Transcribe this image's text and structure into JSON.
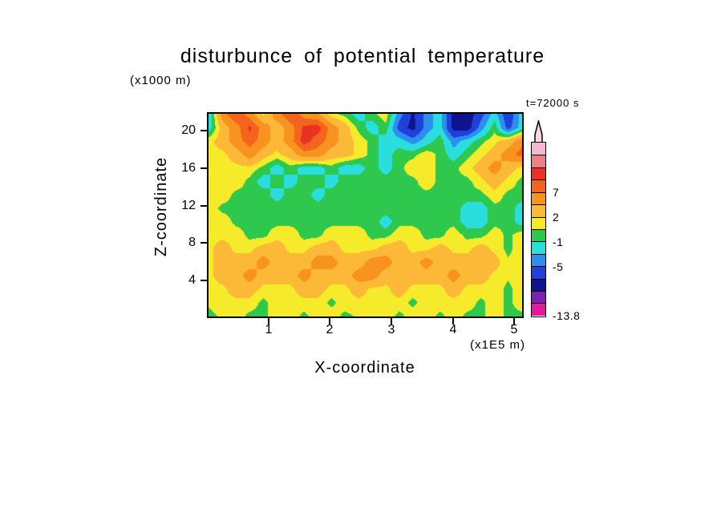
{
  "title": "disturbunce of potential temperature",
  "time_label": "t=72000 s",
  "axes": {
    "x": {
      "label": "X-coordinate",
      "units": "(x1E5 m)",
      "ticks": [
        "1",
        "2",
        "3",
        "4",
        "5"
      ]
    },
    "z": {
      "label": "Z-coordinate",
      "units": "(x1000 m)",
      "ticks": [
        "20",
        "16",
        "12",
        "8",
        "4"
      ]
    }
  },
  "colorbar": {
    "labels": [
      "7",
      "2",
      "-1",
      "-5",
      "-13.8"
    ],
    "label_boundaries": [
      4,
      6,
      8,
      10,
      14
    ],
    "tip_color": "#f8d6e2"
  },
  "chart_data": {
    "type": "heatmap",
    "title": "disturbunce of potential temperature",
    "xlabel": "X-coordinate (x1E5 m)",
    "ylabel": "Z-coordinate (x1000 m)",
    "time_annotation": "t=72000 s",
    "x_range": [
      0,
      5.15
    ],
    "z_range": [
      0,
      22
    ],
    "x_ticks": [
      1,
      2,
      3,
      4,
      5
    ],
    "z_ticks": [
      4,
      8,
      12,
      16,
      20
    ],
    "colorbar_labeled_levels": [
      7,
      2,
      -1,
      -5,
      -13.8
    ],
    "value_min": -13.8,
    "levels_desc": [
      12.5,
      11,
      9,
      7,
      4.5,
      2,
      0.5,
      -1,
      -3,
      -5,
      -7.5,
      -10,
      -12
    ],
    "band_colors_desc": [
      "#f5b8d0",
      "#ee7f86",
      "#e93223",
      "#f4641e",
      "#f7931e",
      "#fcb938",
      "#f6eb2a",
      "#2dc84d",
      "#2adede",
      "#2e8ef0",
      "#1f41d9",
      "#10148c",
      "#7b22b4",
      "#e5199c"
    ],
    "grid": {
      "cols": 24,
      "rows": 16,
      "x0": 0,
      "x1": 5.15,
      "z_top": 22,
      "z_bottom": 0,
      "values": [
        [
          -3,
          6,
          9,
          6,
          1.5,
          6,
          9,
          6,
          5,
          1,
          0,
          -2,
          0,
          1.5,
          -4,
          -8,
          -4,
          -2,
          -8.5,
          -9,
          -6,
          -2,
          -7,
          -2
        ],
        [
          -2,
          3,
          6,
          9.5,
          6,
          3,
          6,
          9.5,
          10,
          6,
          3,
          0,
          -2,
          0,
          -6,
          -8.5,
          -4,
          -2,
          -8.5,
          -9,
          -4,
          0,
          -6,
          -2
        ],
        [
          1.5,
          3,
          6,
          8,
          6,
          3,
          6,
          10,
          8,
          6,
          3,
          1.5,
          0,
          -2,
          -2,
          -4,
          -2,
          0,
          -4,
          -2,
          0,
          1.5,
          3,
          6
        ],
        [
          1.5,
          1.5,
          3,
          6,
          3,
          1.5,
          3,
          6,
          6,
          3,
          3,
          1.5,
          0,
          -2,
          0,
          0,
          1.5,
          0,
          -2,
          0,
          1.5,
          3,
          6,
          8
        ],
        [
          1.5,
          1.5,
          1.5,
          1.5,
          0,
          -2,
          0,
          -2,
          -2,
          0,
          -2,
          -2,
          0,
          -2,
          0,
          1.5,
          1.5,
          0,
          0,
          1.5,
          3,
          6,
          3,
          1.5
        ],
        [
          1.5,
          1.5,
          1.5,
          0,
          -2,
          0,
          -2,
          0,
          0,
          -2,
          0,
          0,
          0,
          0,
          0,
          0,
          1.5,
          0,
          0,
          0,
          1.5,
          3,
          1.5,
          0
        ],
        [
          1.5,
          1.5,
          0,
          0,
          0,
          -2,
          0,
          0,
          -2,
          0,
          0,
          0,
          0,
          0,
          0,
          0,
          0,
          0,
          0,
          0,
          0,
          1.5,
          0,
          0
        ],
        [
          1.5,
          0,
          0,
          0,
          0,
          0,
          0,
          0,
          0,
          0,
          0,
          0,
          0,
          0,
          0,
          0,
          0,
          0,
          0,
          -2,
          -2,
          0,
          0,
          -2
        ],
        [
          1.5,
          1.5,
          0,
          0,
          0,
          0,
          0,
          0,
          0,
          0,
          0,
          0,
          0,
          -2,
          0,
          0,
          0,
          0,
          0,
          -2,
          -2,
          0,
          0,
          -2
        ],
        [
          1.5,
          1.5,
          1.5,
          0,
          0,
          1.5,
          1.5,
          0,
          0,
          1.5,
          1.5,
          1.5,
          0,
          0,
          1.5,
          1.5,
          0,
          0,
          1.5,
          0,
          0,
          1.5,
          0,
          1.5
        ],
        [
          1.5,
          3,
          1.5,
          1.5,
          3,
          3,
          1.5,
          1.5,
          3,
          3,
          1.5,
          1.5,
          1.5,
          3,
          3,
          1.5,
          1.5,
          3,
          1.5,
          1.5,
          3,
          1.5,
          0,
          1.5
        ],
        [
          1.5,
          3,
          3,
          3,
          6,
          3,
          3,
          3,
          6,
          6,
          3,
          3,
          6,
          6,
          3,
          3,
          6,
          3,
          3,
          3,
          3,
          3,
          0.8,
          1.5
        ],
        [
          1.5,
          3,
          3,
          6,
          3,
          3,
          3,
          6,
          3,
          3,
          3,
          6,
          6,
          3,
          3,
          3,
          3,
          3,
          6,
          3,
          3,
          1.5,
          0.8,
          1.5
        ],
        [
          1.5,
          1.5,
          3,
          3,
          1.5,
          1.5,
          1.5,
          3,
          3,
          1.5,
          1.5,
          3,
          1.5,
          1.5,
          3,
          1.5,
          1.5,
          1.5,
          3,
          1.5,
          1.5,
          1.5,
          0,
          1.5
        ],
        [
          0.8,
          1.5,
          1.5,
          1.5,
          0,
          1.5,
          1.5,
          1.5,
          1.5,
          0,
          1.5,
          1.5,
          1.5,
          1.5,
          1.5,
          0,
          1.5,
          1.5,
          1.5,
          1.5,
          0,
          1.5,
          0,
          1.5
        ],
        [
          0,
          0.8,
          1.5,
          0,
          0,
          1.5,
          1.5,
          0,
          1.5,
          1.5,
          0,
          0.8,
          1.5,
          1.5,
          0,
          1.5,
          1.5,
          0,
          1.5,
          0,
          0,
          1.5,
          0,
          0
        ]
      ]
    }
  }
}
